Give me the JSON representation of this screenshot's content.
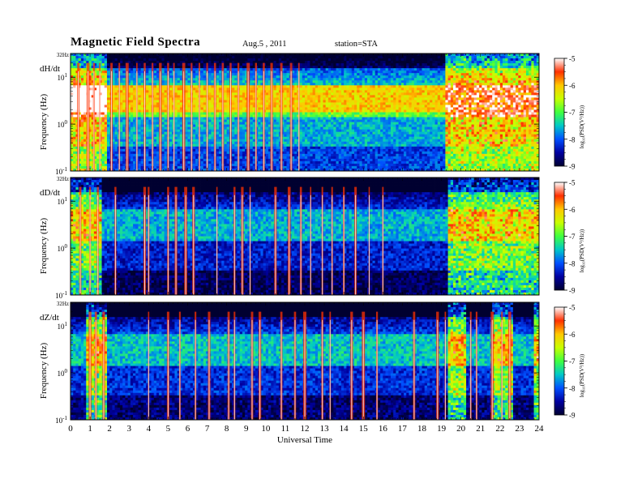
{
  "header": {
    "title": "Magnetic  Field  Spectra",
    "date": "Aug.5  , 2011",
    "station": "station=STA"
  },
  "chart_data": {
    "type": "heatmap",
    "xlabel": "Universal Time",
    "ylabel": "Frequency  (Hz)",
    "x_ticks": [
      "0",
      "1",
      "2",
      "3",
      "4",
      "5",
      "6",
      "7",
      "8",
      "9",
      "10",
      "11",
      "12",
      "13",
      "14",
      "15",
      "16",
      "17",
      "18",
      "19",
      "20",
      "21",
      "22",
      "23",
      "24"
    ],
    "xlim": [
      0,
      24
    ],
    "y_scale": "log",
    "ylim_hz": [
      0.1,
      32
    ],
    "y_top_label": "32Hz",
    "y_tick_labels": [
      "10^1",
      "10^0",
      "10^-1"
    ],
    "colorbar": {
      "label": "log10(PSD(V^2/Hz))",
      "label_display": "log₁₀(PSD(V²/Hz))",
      "range": [
        -9,
        -5
      ],
      "ticks": [
        "-5",
        "-6",
        "-7",
        "-8",
        "-9"
      ],
      "colormap": [
        "#000030",
        "#0000a0",
        "#0050ff",
        "#00c8c8",
        "#40ff40",
        "#c8ff00",
        "#ffc800",
        "#ff3000",
        "#ffffff"
      ]
    },
    "panels": [
      {
        "name": "dH/dt",
        "base_level": -7.2,
        "noisy_intervals": [
          [
            0,
            1.9
          ],
          [
            19.2,
            24
          ]
        ],
        "spikes_ut": [
          0.4,
          0.9,
          1.2,
          1.5,
          2.1,
          2.5,
          2.9,
          3.4,
          3.8,
          4.2,
          4.6,
          5.0,
          5.3,
          5.8,
          6.2,
          6.6,
          7.0,
          7.4,
          7.8,
          8.2,
          8.6,
          9.1,
          9.5,
          9.9,
          10.3,
          10.8,
          11.3,
          11.7
        ]
      },
      {
        "name": "dD/dt",
        "base_level": -7.9,
        "noisy_intervals": [
          [
            0,
            1.6
          ],
          [
            19.3,
            24
          ]
        ],
        "spikes_ut": [
          0.5,
          1.0,
          1.4,
          2.3,
          3.8,
          4.0,
          5.0,
          5.4,
          5.9,
          6.3,
          7.5,
          8.4,
          8.8,
          9.2,
          10.5,
          11.2,
          11.8,
          12.3,
          12.9,
          13.4,
          14.0,
          14.6,
          15.3,
          16.0
        ]
      },
      {
        "name": "dZ/dt",
        "base_level": -7.8,
        "noisy_intervals": [
          [
            0.8,
            1.9
          ],
          [
            19.4,
            20.2
          ],
          [
            21.6,
            22.6
          ],
          [
            23.7,
            24
          ]
        ],
        "spikes_ut": [
          1.0,
          1.3,
          1.7,
          4.0,
          5.0,
          5.6,
          6.4,
          7.1,
          8.1,
          8.4,
          9.3,
          9.7,
          10.8,
          11.5,
          12.0,
          12.9,
          13.3,
          14.4,
          15.0,
          15.7,
          17.6,
          18.8,
          19.2,
          20.5,
          20.8,
          21.6,
          22.1,
          22.5
        ]
      }
    ]
  }
}
